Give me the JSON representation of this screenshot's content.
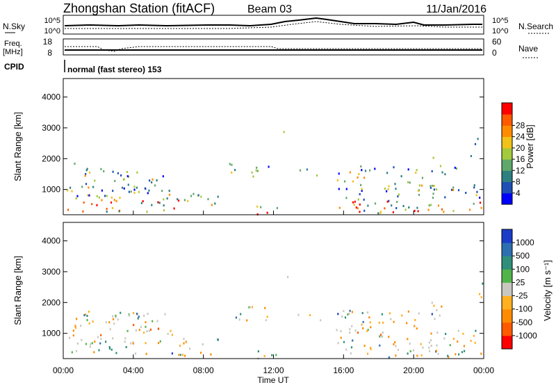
{
  "header": {
    "station": "Zhongshan Station (fitACF)",
    "beam": "Beam 03",
    "date": "11/Jan/2016"
  },
  "sky_panel": {
    "left_label": "N.Sky",
    "right_label": "N.Search",
    "left_ticks": [
      "10^5",
      "10^0"
    ],
    "right_ticks": [
      "10^5",
      "10^0"
    ]
  },
  "freq_panel": {
    "left_label_top": "Freq.",
    "left_label_unit": "[MHz]",
    "right_label": "Nave",
    "left_ticks": [
      "18",
      "8"
    ],
    "right_ticks": [
      "60",
      "0"
    ]
  },
  "cpid": {
    "label": "CPID",
    "mode_text": "normal (fast stereo) 153"
  },
  "x_axis": {
    "ticks": [
      "00:00",
      "04:00",
      "08:00",
      "12:00",
      "16:00",
      "20:00",
      "00:00"
    ],
    "label": "Time UT"
  },
  "chart_data": [
    {
      "type": "heatmap",
      "name": "power",
      "ylabel": "Slant Range [km]",
      "y_ticks": [
        "1000",
        "2000",
        "3000",
        "4000"
      ],
      "ylim": [
        180,
        4600
      ],
      "xlim_hours": [
        0,
        24
      ],
      "colorbar": {
        "label": "Power [dB]",
        "ticks": [
          "4",
          "8",
          "12",
          "16",
          "20",
          "24",
          "28"
        ],
        "colors": [
          "#0000ff",
          "#1f4fb4",
          "#2e7f7f",
          "#5fa86a",
          "#a3c93c",
          "#f0c21a",
          "#ff8c00",
          "#ff5a00",
          "#ff0000"
        ]
      }
    },
    {
      "type": "heatmap",
      "name": "velocity",
      "ylabel": "Slant Range [km]",
      "y_ticks": [
        "1000",
        "2000",
        "3000",
        "4000"
      ],
      "ylim": [
        180,
        4600
      ],
      "xlim_hours": [
        0,
        24
      ],
      "colorbar": {
        "label": "Velocity [m s⁻¹]",
        "ticks": [
          "1000",
          "500",
          "100",
          "25",
          "-25",
          "-100",
          "-500",
          "-1000"
        ],
        "colors": [
          "#1a3cc8",
          "#2e6fb0",
          "#2f8f7a",
          "#52b34a",
          "#c8c8c0",
          "#ffb020",
          "#ff8c00",
          "#ff5a00",
          "#ff0000"
        ]
      }
    }
  ]
}
